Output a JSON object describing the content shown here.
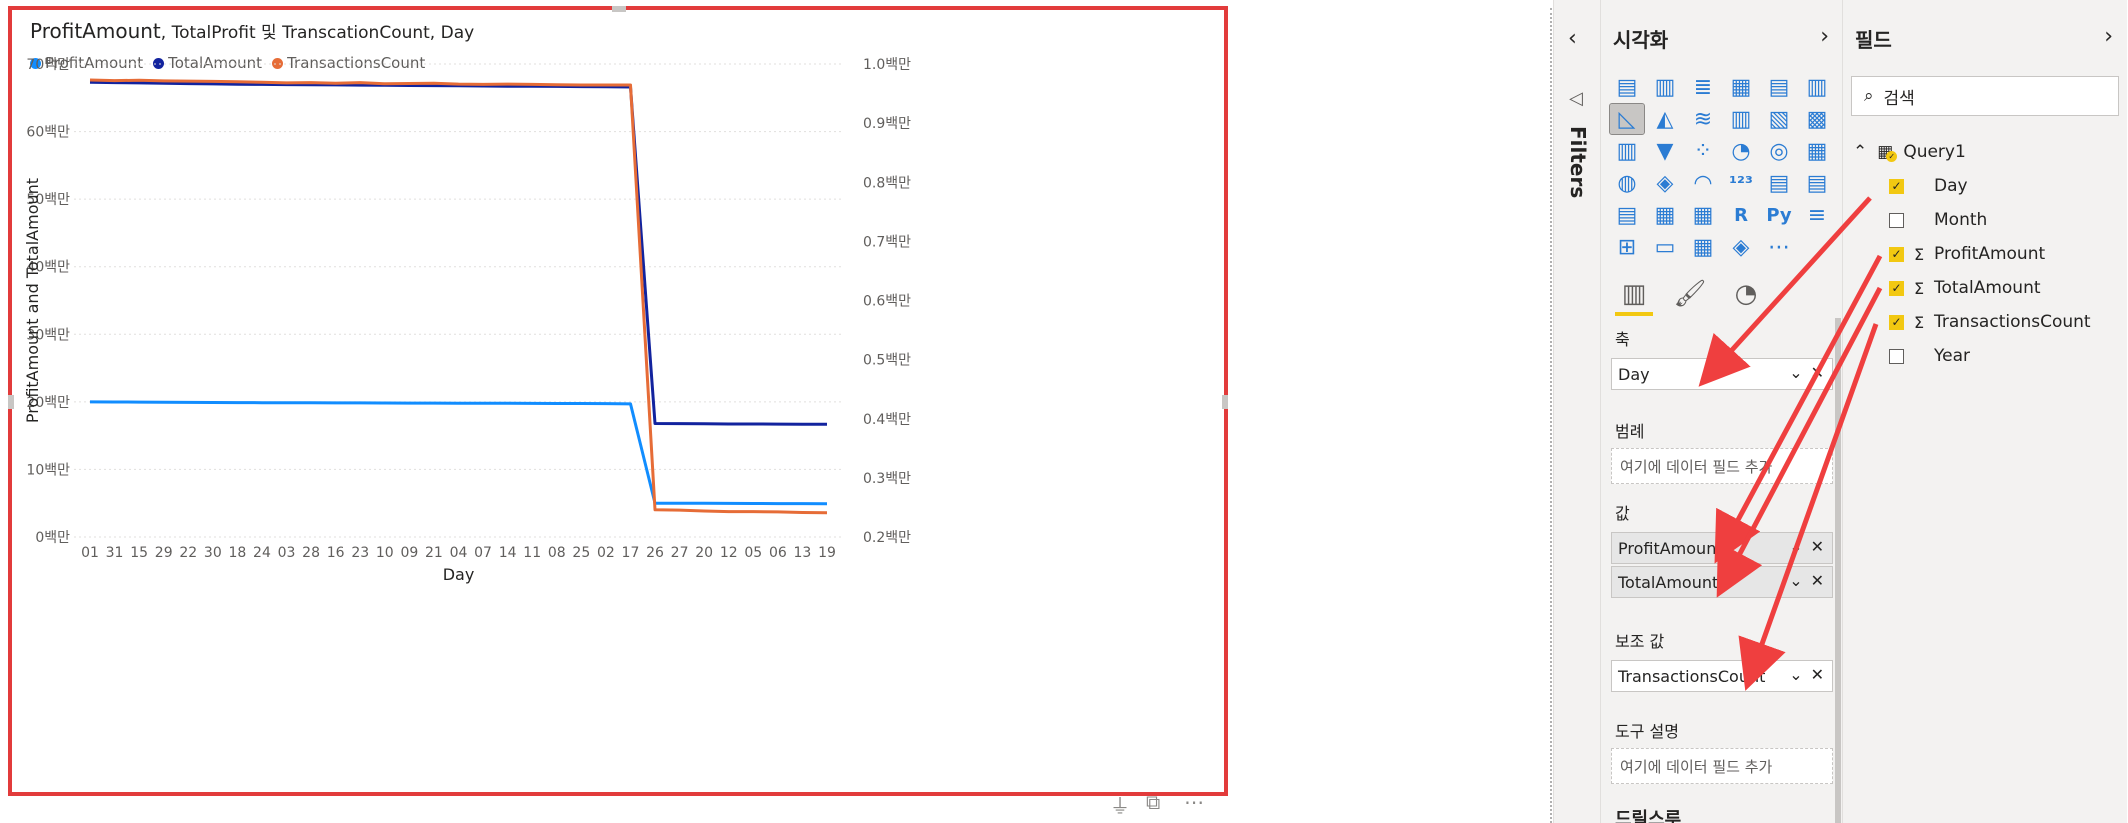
{
  "visual": {
    "title_main": "ProfitAmount",
    "title_rest": ", TotalProfit 및 TranscationCount, Day",
    "legend": [
      {
        "label": "ProfitAmount",
        "color": "#118dff"
      },
      {
        "label": "TotalAmount",
        "color": "#12239e"
      },
      {
        "label": "TransactionsCount",
        "color": "#e66c37"
      }
    ]
  },
  "chart_data": {
    "type": "line",
    "xlabel": "Day",
    "ylabel": "ProfitAmount and TotalAmount",
    "categories": [
      "01",
      "31",
      "15",
      "29",
      "22",
      "30",
      "18",
      "24",
      "03",
      "28",
      "16",
      "23",
      "10",
      "09",
      "21",
      "04",
      "07",
      "14",
      "11",
      "08",
      "25",
      "02",
      "17",
      "26",
      "27",
      "20",
      "12",
      "05",
      "06",
      "13",
      "19"
    ],
    "y_ticks": [
      "0백만",
      "10백만",
      "20백만",
      "30백만",
      "40백만",
      "50백만",
      "60백만",
      "70백만"
    ],
    "ylim": [
      0,
      70000000
    ],
    "y2_ticks": [
      "0.2백만",
      "0.3백만",
      "0.4백만",
      "0.5백만",
      "0.6백만",
      "0.7백만",
      "0.8백만",
      "0.9백만",
      "1.0백만"
    ],
    "y2lim": [
      200000,
      1000000
    ],
    "grid": true,
    "legend_position": "top-left",
    "series": [
      {
        "name": "ProfitAmount",
        "axis": "primary",
        "color": "#118dff",
        "values": [
          20000000,
          19980000,
          19960000,
          19940000,
          19920000,
          19900000,
          19890000,
          19880000,
          19870000,
          19860000,
          19850000,
          19840000,
          19830000,
          19820000,
          19810000,
          19800000,
          19790000,
          19780000,
          19770000,
          19760000,
          19750000,
          19740000,
          19700000,
          5000000,
          4990000,
          4980000,
          4970000,
          4960000,
          4950000,
          4940000,
          4930000
        ]
      },
      {
        "name": "TotalAmount",
        "axis": "primary",
        "color": "#12239e",
        "values": [
          67300000,
          67250000,
          67200000,
          67150000,
          67100000,
          67050000,
          67000000,
          66980000,
          66950000,
          66920000,
          66900000,
          66880000,
          66850000,
          66820000,
          66800000,
          66780000,
          66750000,
          66720000,
          66700000,
          66680000,
          66650000,
          66620000,
          66600000,
          16800000,
          16780000,
          16750000,
          16730000,
          16720000,
          16710000,
          16700000,
          16680000
        ]
      },
      {
        "name": "TransactionsCount",
        "axis": "secondary",
        "color": "#e66c37",
        "values": [
          973000,
          972000,
          972500,
          971500,
          971000,
          970500,
          970000,
          969000,
          968000,
          968500,
          967500,
          968500,
          966500,
          967000,
          967500,
          966000,
          965500,
          966000,
          965500,
          965000,
          964500,
          964500,
          964500,
          246000,
          245500,
          244000,
          243000,
          243000,
          242500,
          241500,
          241000
        ]
      }
    ]
  },
  "below_icons": [
    "filter-icon",
    "focus-mode-icon",
    "more-options-icon"
  ],
  "filters": {
    "label": "Filters",
    "collapse_glyph": "‹"
  },
  "viz_pane": {
    "title": "시각화",
    "expand_glyph": "›",
    "icons": [
      "▤",
      "▥",
      "≣",
      "▦",
      "▤",
      "▥",
      "◺",
      "◭",
      "≋",
      "▥",
      "▧",
      "▩",
      "▥",
      "▼",
      "⁘",
      "◔",
      "◎",
      "▦",
      "◍",
      "◈",
      "◠",
      "¹²³",
      "▤",
      "▤",
      "▤",
      "▦",
      "▦",
      "R",
      "Py",
      "≡",
      "⊞",
      "▭",
      "▦",
      "◈",
      "⋯"
    ],
    "selected_icon_index": 6,
    "wells": {
      "axis_label": "축",
      "axis_field": "Day",
      "legend_label": "범례",
      "legend_placeholder": "여기에 데이터 필드 추가",
      "values_label": "값",
      "values_fields": [
        "ProfitAmount",
        "TotalAmount"
      ],
      "secondary_label": "보조 값",
      "secondary_field": "TransactionsCount",
      "tooltip_label": "도구 설명",
      "tooltip_placeholder": "여기에 데이터 필드 추가",
      "drillthrough_label": "드릴스루"
    },
    "remove_glyph": "✕",
    "chevron_glyph": "⌄"
  },
  "fields_pane": {
    "title": "필드",
    "expand_glyph": "›",
    "search_placeholder": "검색",
    "table_name": "Query1",
    "fields": [
      {
        "name": "Day",
        "checked": true,
        "sigma": false
      },
      {
        "name": "Month",
        "checked": false,
        "sigma": false
      },
      {
        "name": "ProfitAmount",
        "checked": true,
        "sigma": true
      },
      {
        "name": "TotalAmount",
        "checked": true,
        "sigma": true
      },
      {
        "name": "TransactionsCount",
        "checked": true,
        "sigma": true
      },
      {
        "name": "Year",
        "checked": false,
        "sigma": false
      }
    ]
  },
  "annotation_color": "#ef3f3f"
}
